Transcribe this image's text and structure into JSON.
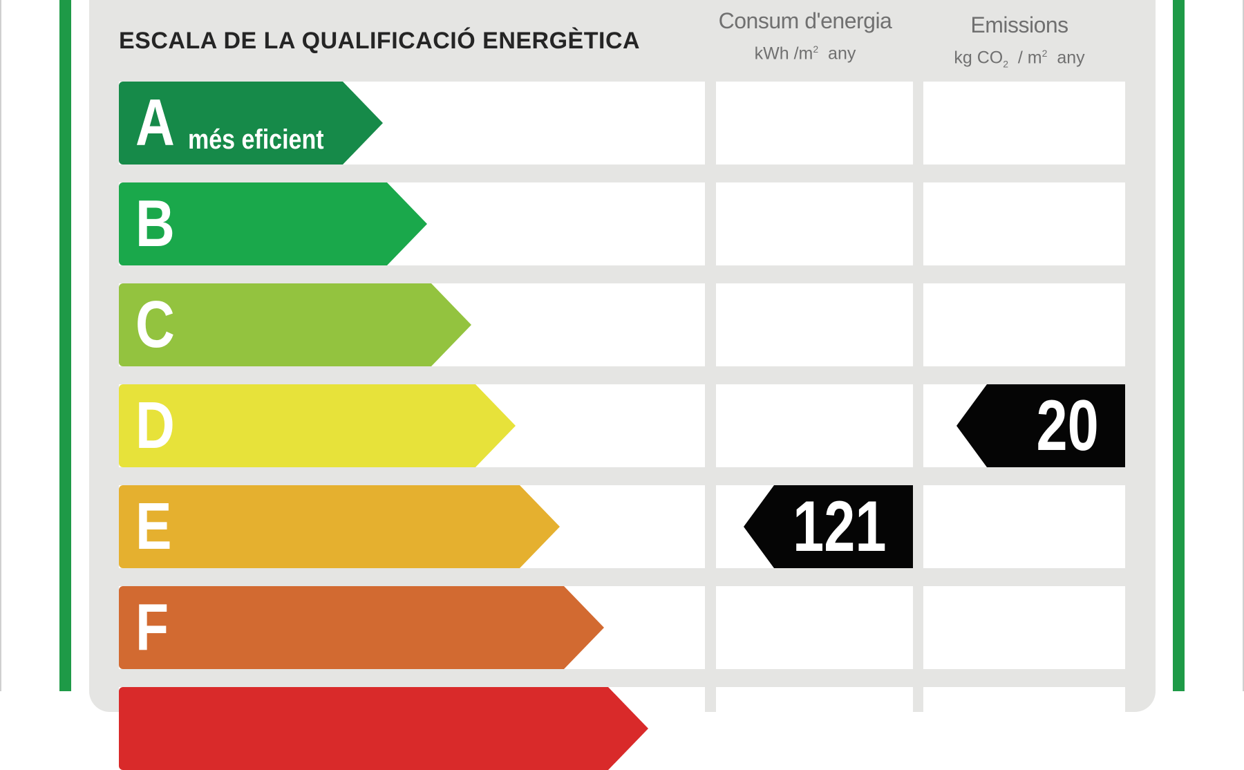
{
  "title": "ESCALA DE LA QUALIFICACIÓ ENERGÈTICA",
  "columns": {
    "consum": {
      "title": "Consum d'energia",
      "unit_prefix": "kWh /m",
      "unit_sup": "2",
      "unit_suffix": "any"
    },
    "emissions": {
      "title": "Emissions",
      "unit_prefix": "kg CO",
      "unit_sub": "2",
      "unit_mid": " / m",
      "unit_sup": "2",
      "unit_suffix": "any"
    }
  },
  "classes": [
    {
      "letter": "A",
      "label": "més eficient",
      "color": "#168a49"
    },
    {
      "letter": "B",
      "label": "",
      "color": "#1aa84b"
    },
    {
      "letter": "C",
      "label": "",
      "color": "#93c33f"
    },
    {
      "letter": "D",
      "label": "",
      "color": "#e7e23a"
    },
    {
      "letter": "E",
      "label": "",
      "color": "#e5b02f"
    },
    {
      "letter": "F",
      "label": "",
      "color": "#d26a31"
    },
    {
      "letter": "",
      "label": "",
      "color": "#d92a2a"
    }
  ],
  "ratings": {
    "consum": {
      "class": "E",
      "value": "121"
    },
    "emissions": {
      "class": "D",
      "value": "20"
    }
  },
  "colors": {
    "frame": "#1e9a47",
    "panel": "#e5e5e3",
    "badge": "#050505"
  }
}
